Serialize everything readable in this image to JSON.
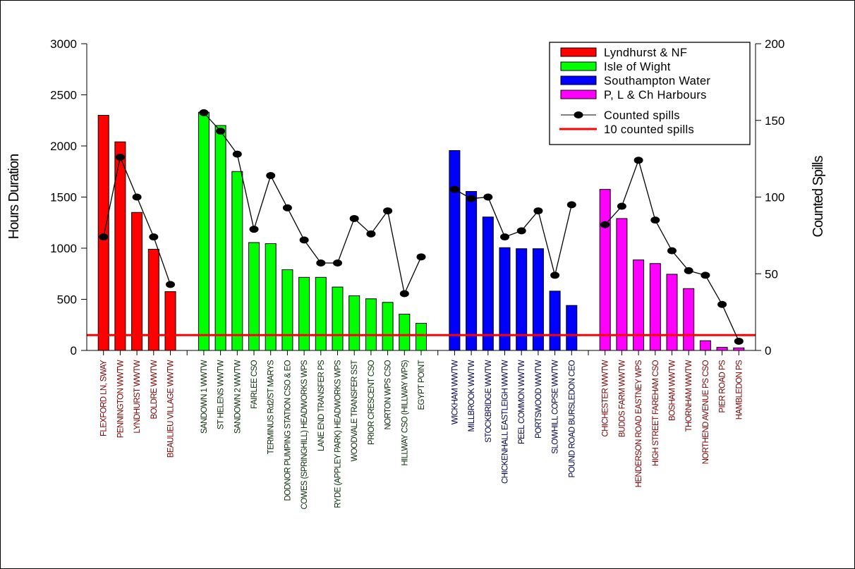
{
  "chart_data": {
    "type": "bar",
    "title": "",
    "xlabel": "",
    "ylabel": "Hours Duration",
    "y2label": "Counted Spills",
    "ylim": [
      0,
      3000
    ],
    "y2lim": [
      0,
      200
    ],
    "yticks": [
      0,
      500,
      1000,
      1500,
      2000,
      2500,
      3000
    ],
    "y2ticks": [
      0,
      50,
      100,
      150,
      200
    ],
    "grid": false,
    "legend_position": "top-right",
    "threshold": {
      "name": "10 counted spills",
      "value": 10,
      "color": "#ff0000"
    },
    "spills_series_name": "Counted spills",
    "groups": [
      {
        "name": "Lyndhurst & NF",
        "color": "#ff0000",
        "label_color": "#7a0000",
        "categories": [
          "FLEXFORD LN, SWAY",
          "PENNINGTON WWTW",
          "LYNDHURST WWTW",
          "BOLDRE WWTW",
          "BEAULIEU VILLAGE WWTW"
        ],
        "hours": [
          2300,
          2040,
          1350,
          990,
          575
        ],
        "spills": [
          74,
          126,
          100,
          74,
          43
        ]
      },
      {
        "name": "Isle of Wight",
        "color": "#00ff00",
        "label_color": "#0a2a0a",
        "categories": [
          "SANDOWN 1 WWTW",
          "ST HELENS WWTW",
          "SANDOWN 2 WWTW",
          "FAIRLEE CSO",
          "TERMINUS Rd2/ST MARYS",
          "DODNOR PUMPING STATION CSO & EO",
          "COWES (SPRINGHILL) HEADWORKS WPS",
          "LANE END TRANSFER PS",
          "RYDE (APPLEY PARK) HEADWORKS WPS",
          "WOODVALE TRANSFER SST",
          "PRIOR CRESCENT CSO",
          "NORTON WPS CSO",
          "HILLWAY CSO (HILLWAY WPS)",
          "EGYPT POINT"
        ],
        "hours": [
          2330,
          2200,
          1750,
          1055,
          1045,
          790,
          715,
          715,
          620,
          535,
          505,
          470,
          355,
          265
        ],
        "spills": [
          155,
          143,
          128,
          79,
          114,
          93,
          72,
          57,
          57,
          86,
          76,
          91,
          37,
          61
        ]
      },
      {
        "name": "Southampton Water",
        "color": "#0000ff",
        "label_color": "#00004a",
        "categories": [
          "WICKHAM WWTW",
          "MILLBROOK WWTW",
          "STOCKBRIDGE WWTW",
          "CHICKENHALL EASTLEIGH WWTW",
          "PEEL COMMON WWTW",
          "PORTSWOOD WWTW",
          "SLOWHILL COPSE WWTW",
          "POUND ROAD BURSLEDON CEO"
        ],
        "hours": [
          1955,
          1555,
          1305,
          1005,
          995,
          995,
          580,
          440
        ],
        "spills": [
          105,
          99,
          100,
          74,
          78,
          91,
          49,
          95
        ]
      },
      {
        "name": "P, L & Ch Harbours",
        "color": "#ff00ff",
        "label_color": "#7a0000",
        "categories": [
          "CHICHESTER WWTW",
          "BUDDS FARM WWTW",
          "HENDERSON ROAD EASTNEY WPS",
          "HIGH STREET FAREHAM CSO",
          "BOSHAM WWTW",
          "THORNHAM WWTW",
          "NORTHEND AVENUE PS CSO",
          "PIER ROAD PS",
          "HAMBLEDON PS"
        ],
        "hours": [
          1575,
          1290,
          885,
          850,
          745,
          605,
          95,
          30,
          25
        ],
        "spills": [
          82,
          94,
          124,
          85,
          65,
          52,
          49,
          30,
          6
        ]
      }
    ]
  }
}
